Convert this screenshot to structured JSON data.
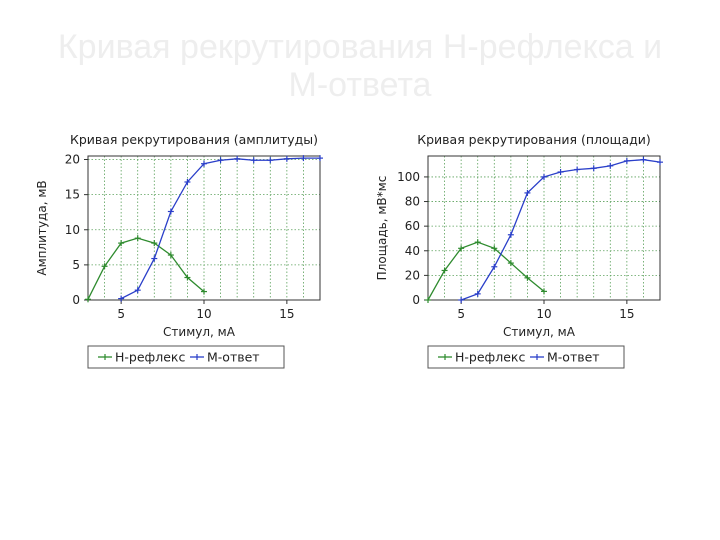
{
  "slide": {
    "title": "Кривая рекрутирования H-рефлекса и M-ответа"
  },
  "colors": {
    "h_reflex": "#2e8b2e",
    "m_response": "#2a3fc9",
    "grid": "#5aa05a",
    "text": "#222222"
  },
  "chart_data": [
    {
      "type": "line",
      "title": "Кривая рекрутирования (амплитуды)",
      "xlabel": "Стимул, мА",
      "ylabel": "Амплитуда, мВ",
      "xlim": [
        3,
        17
      ],
      "ylim": [
        0,
        20.5
      ],
      "xticks": [
        5,
        10,
        15
      ],
      "yticks": [
        0,
        5,
        10,
        15,
        20
      ],
      "grid": true,
      "legend_position": "bottom",
      "series": [
        {
          "name": "H-рефлекс",
          "color": "#2e8b2e",
          "marker": "plus",
          "x": [
            3,
            4,
            5,
            6,
            7,
            8,
            9,
            10
          ],
          "y": [
            0.1,
            4.8,
            8.1,
            8.8,
            8.1,
            6.4,
            3.2,
            1.2
          ]
        },
        {
          "name": "M-ответ",
          "color": "#2a3fc9",
          "marker": "plus",
          "x": [
            5,
            6,
            7,
            8,
            9,
            10,
            11,
            12,
            13,
            14,
            15,
            16,
            17
          ],
          "y": [
            0.2,
            1.4,
            5.9,
            12.6,
            16.8,
            19.4,
            19.9,
            20.1,
            19.9,
            19.9,
            20.1,
            20.2,
            20.2
          ]
        }
      ]
    },
    {
      "type": "line",
      "title": "Кривая рекрутирования (площади)",
      "xlabel": "Стимул, мА",
      "ylabel": "Площадь, мВ*мс",
      "xlim": [
        3,
        17
      ],
      "ylim": [
        0,
        117
      ],
      "xticks": [
        5,
        10,
        15
      ],
      "yticks": [
        0,
        20,
        40,
        60,
        80,
        100
      ],
      "grid": true,
      "legend_position": "bottom",
      "series": [
        {
          "name": "H-рефлекс",
          "color": "#2e8b2e",
          "marker": "plus",
          "x": [
            3,
            4,
            5,
            6,
            7,
            8,
            9,
            10
          ],
          "y": [
            0,
            24,
            42,
            47,
            42,
            30,
            18,
            7
          ]
        },
        {
          "name": "M-ответ",
          "color": "#2a3fc9",
          "marker": "plus",
          "x": [
            5,
            6,
            7,
            8,
            9,
            10,
            11,
            12,
            13,
            14,
            15,
            16,
            17
          ],
          "y": [
            0,
            5,
            27,
            53,
            87,
            100,
            104,
            106,
            107,
            109,
            113,
            114,
            112
          ]
        }
      ]
    }
  ]
}
